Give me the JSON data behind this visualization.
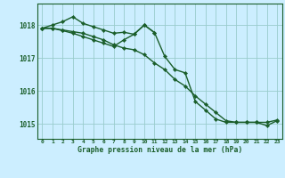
{
  "background_color": "#cceeff",
  "plot_bg_color": "#cceeff",
  "grid_color": "#99cccc",
  "line_color": "#1a5e2a",
  "x": [
    0,
    1,
    2,
    3,
    4,
    5,
    6,
    7,
    8,
    9,
    10,
    11,
    12,
    13,
    14,
    15,
    16,
    17,
    18,
    19,
    20,
    21,
    22,
    23
  ],
  "series1": [
    1017.9,
    1018.0,
    1018.1,
    1018.25,
    1018.05,
    1017.95,
    1017.85,
    1017.75,
    1017.78,
    1017.72,
    1018.0,
    1017.77,
    null,
    null,
    null,
    null,
    null,
    null,
    null,
    null,
    null,
    null,
    null,
    null
  ],
  "series2": [
    1017.9,
    1017.9,
    1017.85,
    1017.8,
    1017.75,
    1017.65,
    1017.55,
    1017.4,
    1017.3,
    1017.25,
    1017.1,
    1016.85,
    1016.65,
    1016.35,
    1016.15,
    1015.85,
    1015.6,
    1015.35,
    1015.1,
    1015.05,
    1015.05,
    1015.05,
    1014.95,
    1015.1
  ],
  "series3": [
    1017.9,
    1017.9,
    1017.83,
    1017.75,
    1017.65,
    1017.55,
    1017.45,
    1017.35,
    1017.55,
    1017.72,
    1018.0,
    1017.77,
    1017.05,
    1016.65,
    1016.55,
    1015.68,
    1015.42,
    1015.15,
    1015.05,
    1015.05,
    1015.05,
    1015.05,
    1015.05,
    1015.12
  ],
  "ylim": [
    1014.55,
    1018.65
  ],
  "yticks": [
    1015,
    1016,
    1017,
    1018
  ],
  "xticks": [
    0,
    1,
    2,
    3,
    4,
    5,
    6,
    7,
    8,
    9,
    10,
    11,
    12,
    13,
    14,
    15,
    16,
    17,
    18,
    19,
    20,
    21,
    22,
    23
  ],
  "xlabel": "Graphe pression niveau de la mer (hPa)",
  "markersize": 2.2,
  "linewidth": 1.0
}
